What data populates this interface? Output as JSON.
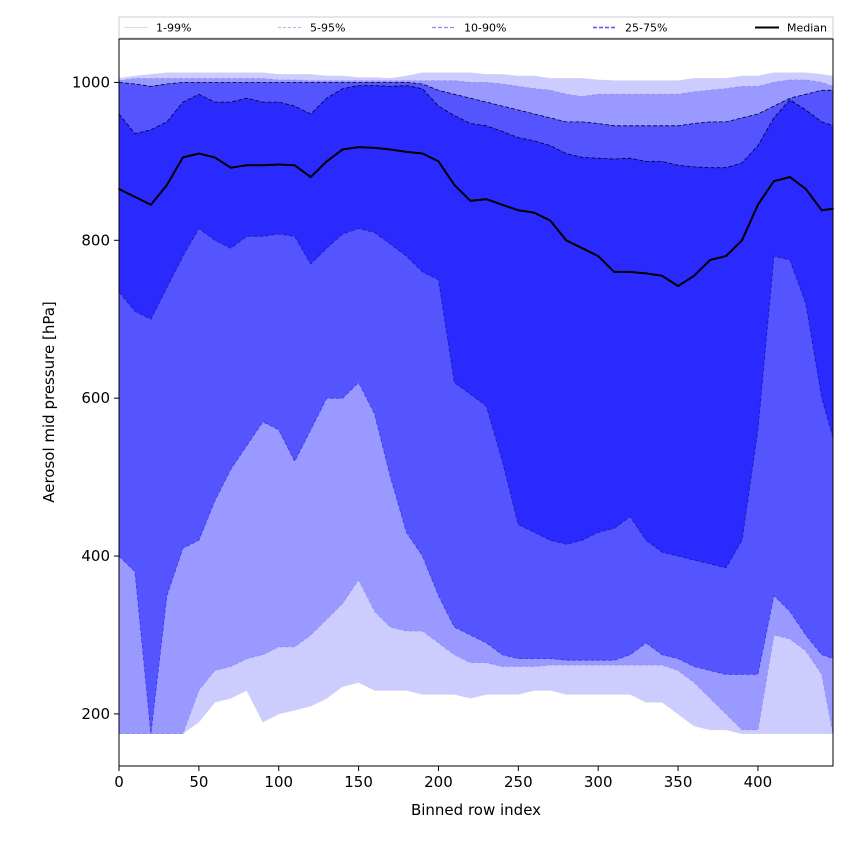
{
  "chart_data": {
    "type": "area",
    "title": "",
    "xlabel": "Binned row index",
    "ylabel": "Aerosol mid pressure [hPa]",
    "xlim": [
      0,
      447
    ],
    "ylim": [
      134,
      1055
    ],
    "xticks": [
      0,
      50,
      100,
      150,
      200,
      250,
      300,
      350,
      400
    ],
    "yticks": [
      200,
      400,
      600,
      800,
      1000
    ],
    "xtick_labels": [
      "0",
      "50",
      "100",
      "150",
      "200",
      "250",
      "300",
      "350",
      "400"
    ],
    "ytick_labels": [
      "200",
      "400",
      "600",
      "800",
      "1000"
    ],
    "legend_position": "top (above plot, single row)",
    "legend": [
      {
        "label": "1-99%",
        "style": "solid",
        "color": "#d9d9f5"
      },
      {
        "label": "5-95%",
        "style": "dashed",
        "color": "#b3b3f0"
      },
      {
        "label": "10-90%",
        "style": "dashed",
        "color": "#8c8cf0"
      },
      {
        "label": "25-75%",
        "style": "dashed",
        "color": "#5555ee"
      },
      {
        "label": "Median",
        "style": "solid",
        "color": "#000000"
      }
    ],
    "x": [
      0,
      10,
      20,
      30,
      40,
      50,
      60,
      70,
      80,
      90,
      100,
      110,
      120,
      130,
      140,
      150,
      160,
      170,
      180,
      190,
      200,
      210,
      220,
      230,
      240,
      250,
      260,
      270,
      280,
      290,
      300,
      310,
      320,
      330,
      340,
      350,
      360,
      370,
      380,
      390,
      400,
      410,
      420,
      430,
      440,
      447
    ],
    "bands": [
      {
        "name": "1-99%",
        "color": "#ccccff",
        "lower": [
          175,
          175,
          175,
          175,
          175,
          190,
          215,
          220,
          230,
          190,
          200,
          205,
          210,
          220,
          235,
          240,
          230,
          230,
          230,
          225,
          225,
          225,
          220,
          225,
          225,
          225,
          230,
          230,
          225,
          225,
          225,
          225,
          225,
          215,
          215,
          200,
          185,
          180,
          180,
          175,
          175,
          175,
          175,
          175,
          175,
          175
        ],
        "upper": [
          1005,
          1008,
          1010,
          1012,
          1012,
          1012,
          1012,
          1012,
          1012,
          1012,
          1010,
          1010,
          1010,
          1008,
          1008,
          1006,
          1006,
          1005,
          1008,
          1012,
          1012,
          1012,
          1012,
          1010,
          1010,
          1008,
          1008,
          1005,
          1005,
          1005,
          1003,
          1002,
          1002,
          1002,
          1002,
          1002,
          1005,
          1005,
          1005,
          1008,
          1008,
          1012,
          1012,
          1012,
          1010,
          1008
        ]
      },
      {
        "name": "5-95%",
        "color": "#9999ff",
        "lower": [
          175,
          175,
          175,
          175,
          175,
          230,
          255,
          260,
          270,
          275,
          285,
          285,
          300,
          320,
          340,
          370,
          330,
          310,
          305,
          305,
          290,
          275,
          265,
          265,
          260,
          260,
          260,
          262,
          262,
          262,
          262,
          262,
          262,
          262,
          262,
          255,
          240,
          220,
          200,
          180,
          180,
          300,
          295,
          280,
          250,
          175
        ],
        "upper": [
          1002,
          1005,
          1005,
          1005,
          1005,
          1005,
          1005,
          1005,
          1005,
          1005,
          1003,
          1003,
          1002,
          1002,
          1002,
          1002,
          1002,
          1002,
          1002,
          1002,
          1002,
          1002,
          1000,
          1000,
          998,
          995,
          992,
          990,
          985,
          982,
          985,
          985,
          985,
          985,
          985,
          985,
          988,
          990,
          992,
          995,
          995,
          1000,
          1003,
          1003,
          1000,
          995
        ]
      },
      {
        "name": "10-90%",
        "color": "#5555ff",
        "lower": [
          400,
          380,
          175,
          350,
          410,
          420,
          470,
          510,
          540,
          570,
          560,
          520,
          560,
          600,
          600,
          620,
          580,
          500,
          430,
          400,
          350,
          310,
          300,
          290,
          275,
          270,
          270,
          270,
          268,
          268,
          268,
          268,
          275,
          290,
          275,
          270,
          260,
          255,
          250,
          250,
          250,
          350,
          330,
          300,
          275,
          270
        ],
        "upper": [
          1000,
          998,
          995,
          998,
          1000,
          1000,
          1000,
          1000,
          1000,
          1000,
          1000,
          1000,
          1000,
          1000,
          1000,
          1000,
          1000,
          1000,
          1000,
          998,
          990,
          985,
          980,
          975,
          970,
          965,
          960,
          955,
          950,
          950,
          948,
          945,
          945,
          945,
          945,
          945,
          948,
          950,
          950,
          955,
          960,
          970,
          980,
          985,
          990,
          990
        ]
      },
      {
        "name": "25-75%",
        "color": "#2a2aff",
        "lower": [
          735,
          710,
          700,
          740,
          780,
          815,
          800,
          790,
          805,
          805,
          808,
          805,
          770,
          790,
          808,
          815,
          810,
          795,
          780,
          760,
          750,
          620,
          605,
          590,
          520,
          440,
          430,
          420,
          415,
          420,
          430,
          435,
          450,
          420,
          405,
          400,
          395,
          390,
          385,
          420,
          560,
          780,
          775,
          720,
          600,
          550
        ],
        "upper": [
          960,
          935,
          940,
          950,
          975,
          985,
          975,
          975,
          980,
          975,
          975,
          970,
          960,
          980,
          992,
          996,
          996,
          995,
          996,
          992,
          970,
          958,
          948,
          945,
          938,
          930,
          926,
          920,
          910,
          905,
          904,
          903,
          904,
          900,
          900,
          895,
          893,
          892,
          892,
          898,
          920,
          955,
          978,
          965,
          950,
          945
        ]
      }
    ],
    "series": [
      {
        "name": "Median",
        "color": "#000000",
        "values": [
          865,
          855,
          845,
          870,
          905,
          910,
          905,
          892,
          895,
          895,
          896,
          895,
          880,
          900,
          915,
          918,
          917,
          915,
          912,
          910,
          900,
          870,
          850,
          852,
          845,
          838,
          835,
          825,
          800,
          790,
          780,
          760,
          760,
          758,
          755,
          742,
          755,
          775,
          780,
          800,
          845,
          875,
          880,
          865,
          838,
          840
        ]
      }
    ]
  }
}
